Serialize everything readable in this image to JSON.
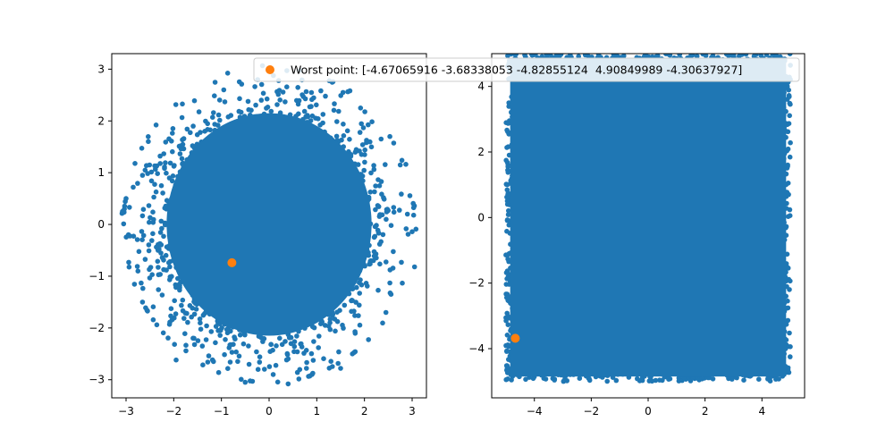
{
  "figure": {
    "background": "#ffffff"
  },
  "chart_data": [
    {
      "type": "scatter",
      "title": "",
      "xlabel": "",
      "ylabel": "",
      "xlim": [
        -3.3,
        3.3
      ],
      "ylim": [
        -3.35,
        3.3
      ],
      "xticks": [
        -3,
        -2,
        -1,
        0,
        1,
        2,
        3
      ],
      "yticks": [
        -3,
        -2,
        -1,
        0,
        1,
        2,
        3
      ],
      "xtick_labels": [
        "−3",
        "−2",
        "−1",
        "0",
        "1",
        "2",
        "3"
      ],
      "ytick_labels": [
        "−3",
        "−2",
        "−1",
        "0",
        "1",
        "2",
        "3"
      ],
      "grid": false,
      "series": [
        {
          "kind": "dense-cloud",
          "color": "#1f77b4",
          "distribution": "standard normal in x and y (radial), outermost points up to radius ~3.1",
          "sample_outliers": [
            [
              3.08,
              -0.09
            ],
            [
              3.05,
              -0.82
            ],
            [
              -3.0,
              0.5
            ],
            [
              -2.85,
              0.72
            ],
            [
              -2.95,
              -0.2
            ],
            [
              0.4,
              -3.08
            ],
            [
              -0.5,
              -3.05
            ],
            [
              1.5,
              -2.78
            ],
            [
              -1.95,
              -2.62
            ],
            [
              2.75,
              1.15
            ],
            [
              2.35,
              1.65
            ],
            [
              -2.6,
              1.05
            ],
            [
              0.2,
              2.78
            ],
            [
              -0.95,
              2.6
            ],
            [
              1.55,
              2.55
            ],
            [
              2.9,
              0.2
            ],
            [
              -2.75,
              -0.9
            ],
            [
              2.45,
              -1.7
            ],
            [
              -1.4,
              -2.35
            ],
            [
              0.9,
              -2.9
            ]
          ]
        },
        {
          "kind": "highlight",
          "name": "Worst point: [-4.67065916 -3.68338053 -4.82855124  4.90849989 -4.30637927]",
          "color": "#ff7f0e",
          "x": [
            -0.78
          ],
          "y": [
            -0.74
          ]
        }
      ]
    },
    {
      "type": "scatter",
      "title": "",
      "xlabel": "",
      "ylabel": "",
      "xlim": [
        -5.5,
        5.5
      ],
      "ylim": [
        -5.5,
        5.0
      ],
      "xticks": [
        -4,
        -2,
        0,
        2,
        4
      ],
      "yticks": [
        -4,
        -2,
        0,
        2,
        4
      ],
      "xtick_labels": [
        "−4",
        "−2",
        "0",
        "2",
        "4"
      ],
      "ytick_labels": [
        "−4",
        "−2",
        "0",
        "2",
        "4"
      ],
      "grid": false,
      "series": [
        {
          "kind": "dense-cloud",
          "color": "#1f77b4",
          "distribution": "uniform over the square [-5, 5] x [-5, 5]",
          "xrange": [
            -5,
            5
          ],
          "yrange": [
            -5,
            5
          ]
        },
        {
          "kind": "highlight",
          "name": "Worst point: [-4.67065916 -3.68338053 -4.82855124  4.90849989 -4.30637927]",
          "color": "#ff7f0e",
          "x": [
            -4.67065916
          ],
          "y": [
            -3.68338053
          ]
        }
      ]
    }
  ],
  "legend": {
    "placement": "top, spanning both panels",
    "label": "Worst point: [-4.67065916 -3.68338053 -4.82855124  4.90849989 -4.30637927]",
    "marker_color": "#ff7f0e"
  }
}
